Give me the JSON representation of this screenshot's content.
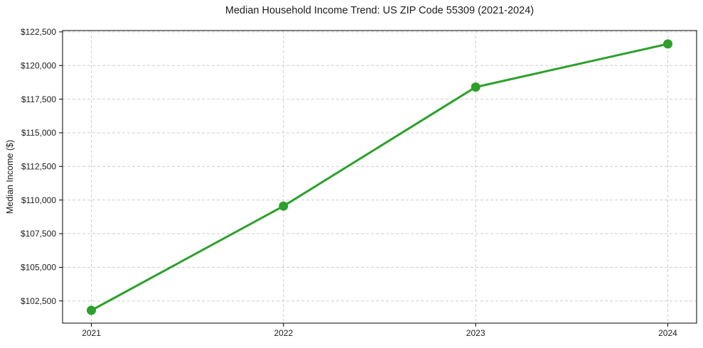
{
  "chart_data": {
    "type": "line",
    "title": "Median Household Income Trend: US ZIP Code 55309 (2021-2024)",
    "xlabel": "",
    "ylabel": "Median Income ($)",
    "categories": [
      "2021",
      "2022",
      "2023",
      "2024"
    ],
    "x": [
      2021,
      2022,
      2023,
      2024
    ],
    "series": [
      {
        "name": "Median Household Income",
        "values": [
          101800,
          109550,
          118400,
          121600
        ],
        "color": "#2ca02c",
        "marker": "circle"
      }
    ],
    "x_tick_labels": [
      "2021",
      "2022",
      "2023",
      "2024"
    ],
    "y_ticks": [
      102500,
      105000,
      107500,
      110000,
      112500,
      115000,
      117500,
      120000,
      122500
    ],
    "y_tick_labels": [
      "$102,500",
      "$105,000",
      "$107,500",
      "$110,000",
      "$112,500",
      "$115,000",
      "$117,500",
      "$120,000",
      "$122,500"
    ],
    "xlim": [
      2020.85,
      2024.15
    ],
    "ylim": [
      100850,
      122600
    ],
    "grid": true,
    "grid_style": "dashed",
    "legend": "none",
    "colors": {
      "line": "#2ca02c",
      "grid": "#cdcdcd",
      "spine": "#000000",
      "text": "#1c1c1c",
      "background": "#ffffff"
    }
  }
}
